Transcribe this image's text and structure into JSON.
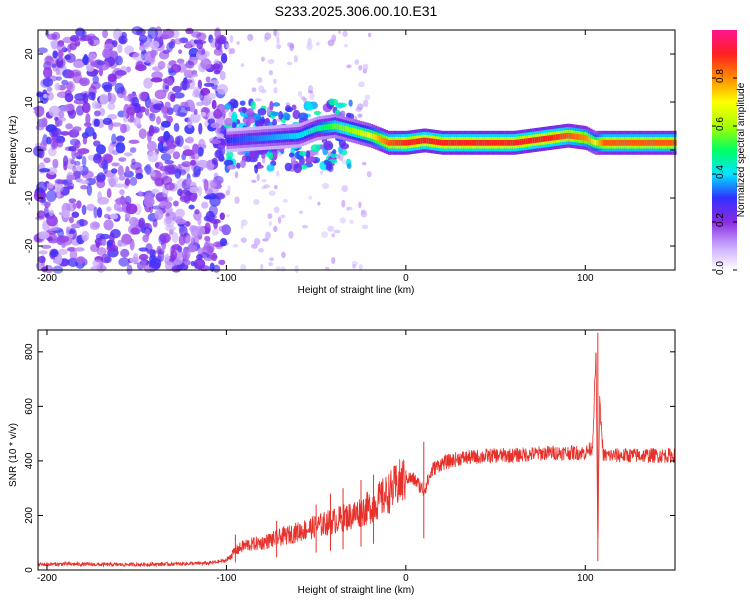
{
  "title": "S233.2025.306.00.10.E31",
  "chart_data": [
    {
      "type": "heatmap",
      "title": "S233.2025.306.00.10.E31",
      "xlabel": "Height of straight line (km)",
      "ylabel": "Frequency (Hz)",
      "xlim": [
        -205,
        150
      ],
      "ylim": [
        -25,
        25
      ],
      "xticks": [
        -200,
        -100,
        0,
        100
      ],
      "yticks": [
        -20,
        -10,
        0,
        10,
        20
      ],
      "colorbar": {
        "label": "Normalized spectral amplitude",
        "range": [
          0,
          1
        ],
        "ticks": [
          "0.0",
          "0.2",
          "0.4",
          "0.6",
          "0.8"
        ],
        "colors": [
          "#ffffff",
          "#c8a8ff",
          "#8a2be2",
          "#3030ff",
          "#00e5ff",
          "#00ff60",
          "#a8ff00",
          "#ffff00",
          "#ff8c00",
          "#ff2020",
          "#ff1493"
        ]
      },
      "ridge": {
        "description_points_x": [
          -100,
          -80,
          -60,
          -50,
          -40,
          -30,
          -20,
          -10,
          0,
          10,
          20,
          40,
          60,
          80,
          90,
          100,
          105,
          110,
          130,
          150
        ],
        "frequency_hz": [
          2.0,
          2.5,
          3.0,
          4.5,
          5.0,
          4.0,
          3.0,
          1.5,
          1.5,
          2.0,
          1.5,
          1.5,
          1.5,
          2.5,
          3.0,
          2.5,
          1.5,
          1.5,
          1.5,
          1.5
        ],
        "amplitude": [
          0.3,
          0.35,
          0.4,
          0.45,
          0.55,
          0.6,
          0.7,
          0.85,
          0.9,
          0.9,
          0.9,
          0.9,
          0.9,
          0.9,
          0.85,
          0.8,
          0.7,
          0.85,
          0.85,
          0.85
        ]
      }
    },
    {
      "type": "line",
      "xlabel": "Height of straight line (km)",
      "ylabel": "SNR (10 * v/v)",
      "xlim": [
        -205,
        150
      ],
      "ylim": [
        0,
        880
      ],
      "xticks": [
        -200,
        -100,
        0,
        100
      ],
      "yticks": [
        0,
        200,
        400,
        600,
        800
      ],
      "color": "#e8302a",
      "series": [
        {
          "name": "SNR",
          "x": [
            -205,
            -190,
            -170,
            -150,
            -130,
            -110,
            -100,
            -95,
            -90,
            -80,
            -70,
            -60,
            -50,
            -40,
            -30,
            -20,
            -10,
            -5,
            0,
            5,
            10,
            15,
            20,
            30,
            40,
            50,
            60,
            70,
            80,
            90,
            100,
            104,
            106,
            107,
            108,
            110,
            120,
            130,
            140,
            150
          ],
          "y": [
            20,
            22,
            20,
            20,
            22,
            25,
            35,
            70,
            90,
            100,
            120,
            140,
            160,
            180,
            200,
            230,
            280,
            310,
            340,
            330,
            290,
            370,
            390,
            410,
            415,
            420,
            420,
            425,
            430,
            430,
            430,
            450,
            800,
            80,
            620,
            420,
            420,
            420,
            420,
            420
          ]
        }
      ],
      "spikes_x": [
        -95,
        -72,
        -50,
        -42,
        -35,
        -25,
        -18,
        10,
        107
      ],
      "spikes_y": [
        130,
        180,
        240,
        280,
        300,
        330,
        350,
        470,
        870
      ]
    }
  ]
}
